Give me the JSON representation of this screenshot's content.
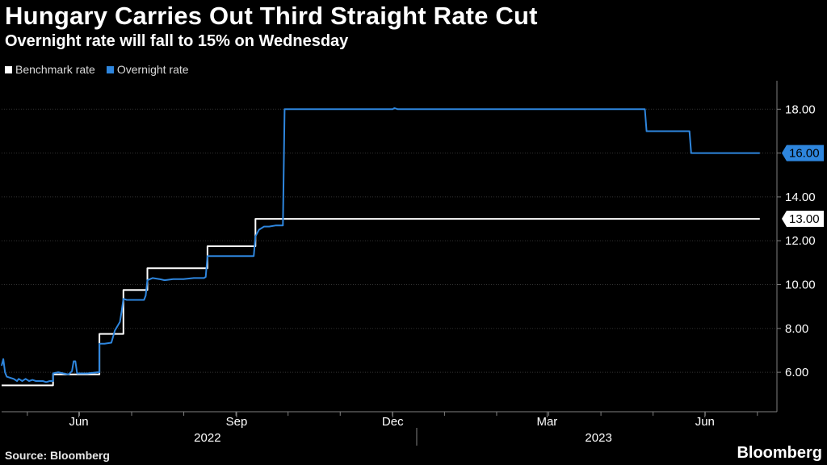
{
  "title": "Hungary Carries Out Third Straight Rate Cut",
  "subtitle": "Overnight rate will fall to 15% on Wednesday",
  "source": "Source: Bloomberg",
  "brand": "Bloomberg",
  "colors": {
    "benchmark": "#ffffff",
    "overnight": "#2e86de",
    "background": "#000000",
    "axis": "#7f7f7f"
  },
  "legend": [
    {
      "label": "Benchmark rate",
      "series": "benchmark"
    },
    {
      "label": "Overnight rate",
      "series": "overnight"
    }
  ],
  "chart_data": {
    "type": "line",
    "title": "Hungary Carries Out Third Straight Rate Cut",
    "subtitle": "Overnight rate will fall to 15% on Wednesday",
    "xlabel": "",
    "ylabel": "",
    "x_unit": "days since 2022-04-01",
    "xlim": [
      0,
      452
    ],
    "ylim": [
      4.2,
      19.3
    ],
    "y_ticks": [
      6.0,
      8.0,
      10.0,
      12.0,
      14.0,
      16.0,
      18.0
    ],
    "y_tick_labels": [
      "6.00",
      "8.00",
      "10.00",
      "12.00",
      "14.00",
      "16.00",
      "18.00"
    ],
    "x_ticks": [
      {
        "label": "Jun",
        "x": 45
      },
      {
        "label": "Sep",
        "x": 137
      },
      {
        "label": "Dec",
        "x": 228
      },
      {
        "label": "Mar",
        "x": 318
      },
      {
        "label": "Jun",
        "x": 410
      }
    ],
    "year_labels": [
      {
        "label": "2022",
        "x": 120
      },
      {
        "label": "2023",
        "x": 348
      }
    ],
    "year_divider_x": 242,
    "end_labels": [
      {
        "series": "overnight",
        "value": 16.0,
        "text": "16.00"
      },
      {
        "series": "benchmark",
        "value": 13.0,
        "text": "13.00"
      }
    ],
    "series": [
      {
        "name": "Benchmark rate",
        "key": "benchmark",
        "step": true,
        "points": [
          [
            0,
            5.4
          ],
          [
            30,
            5.4
          ],
          [
            30,
            5.9
          ],
          [
            57,
            5.9
          ],
          [
            57,
            7.75
          ],
          [
            71,
            7.75
          ],
          [
            71,
            9.75
          ],
          [
            85,
            9.75
          ],
          [
            85,
            10.75
          ],
          [
            120,
            10.75
          ],
          [
            120,
            11.75
          ],
          [
            148,
            11.75
          ],
          [
            148,
            13.0
          ],
          [
            442,
            13.0
          ]
        ]
      },
      {
        "name": "Overnight rate",
        "key": "overnight",
        "step": false,
        "points": [
          [
            0,
            6.3
          ],
          [
            1,
            6.6
          ],
          [
            2,
            6.0
          ],
          [
            3,
            5.8
          ],
          [
            5,
            5.75
          ],
          [
            7,
            5.7
          ],
          [
            9,
            5.6
          ],
          [
            10,
            5.7
          ],
          [
            12,
            5.6
          ],
          [
            14,
            5.7
          ],
          [
            16,
            5.6
          ],
          [
            18,
            5.65
          ],
          [
            20,
            5.6
          ],
          [
            22,
            5.6
          ],
          [
            24,
            5.6
          ],
          [
            26,
            5.55
          ],
          [
            28,
            5.6
          ],
          [
            30,
            5.6
          ],
          [
            30,
            5.95
          ],
          [
            33,
            6.0
          ],
          [
            36,
            5.95
          ],
          [
            39,
            5.9
          ],
          [
            41,
            6.05
          ],
          [
            42,
            6.5
          ],
          [
            43,
            6.5
          ],
          [
            44,
            5.95
          ],
          [
            50,
            5.95
          ],
          [
            56,
            6.0
          ],
          [
            57,
            6.0
          ],
          [
            57,
            7.3
          ],
          [
            60,
            7.3
          ],
          [
            64,
            7.35
          ],
          [
            66,
            7.9
          ],
          [
            69,
            8.3
          ],
          [
            70,
            8.8
          ],
          [
            71,
            9.35
          ],
          [
            73,
            9.3
          ],
          [
            76,
            9.3
          ],
          [
            80,
            9.3
          ],
          [
            83,
            9.3
          ],
          [
            84,
            9.5
          ],
          [
            85,
            10.2
          ],
          [
            88,
            10.3
          ],
          [
            92,
            10.25
          ],
          [
            95,
            10.2
          ],
          [
            100,
            10.25
          ],
          [
            106,
            10.25
          ],
          [
            112,
            10.3
          ],
          [
            118,
            10.3
          ],
          [
            119,
            10.35
          ],
          [
            120,
            11.3
          ],
          [
            125,
            11.3
          ],
          [
            132,
            11.3
          ],
          [
            140,
            11.3
          ],
          [
            147,
            11.3
          ],
          [
            148,
            12.2
          ],
          [
            150,
            12.5
          ],
          [
            153,
            12.65
          ],
          [
            156,
            12.65
          ],
          [
            160,
            12.7
          ],
          [
            164,
            12.7
          ],
          [
            165,
            18.0
          ],
          [
            200,
            18.0
          ],
          [
            228,
            18.0
          ],
          [
            229,
            18.05
          ],
          [
            231,
            18.0
          ],
          [
            260,
            18.0
          ],
          [
            300,
            18.0
          ],
          [
            350,
            18.0
          ],
          [
            375,
            18.0
          ],
          [
            376,
            17.0
          ],
          [
            401,
            17.0
          ],
          [
            402,
            16.0
          ],
          [
            430,
            16.0
          ],
          [
            442,
            16.0
          ]
        ]
      }
    ]
  }
}
